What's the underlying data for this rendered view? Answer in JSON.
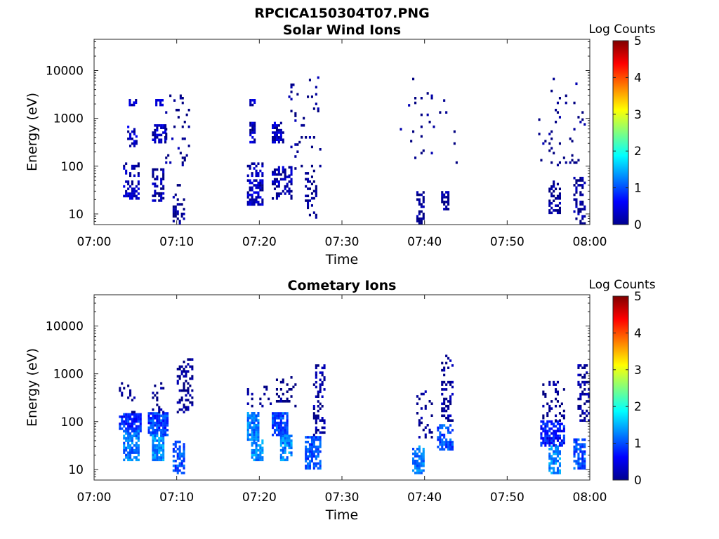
{
  "figure_title": "RPCICA150304T07.PNG",
  "colorbar_gradient": [
    "#00008f",
    "#0000ff",
    "#0080ff",
    "#00ffff",
    "#80ff80",
    "#ffff00",
    "#ff8000",
    "#ff0000",
    "#800000"
  ],
  "chart_data": [
    {
      "type": "heatmap",
      "title": "Solar Wind Ions",
      "xlabel": "Time",
      "ylabel": "Energy (eV)",
      "x_tick_labels": [
        "07:00",
        "07:10",
        "07:20",
        "07:30",
        "07:40",
        "07:50",
        "08:00"
      ],
      "x_range_minutes": [
        0,
        60
      ],
      "y_scale": "log",
      "y_range": [
        6,
        45000
      ],
      "y_tick_values": [
        10,
        100,
        1000,
        10000
      ],
      "y_tick_labels": [
        "10",
        "100",
        "1000",
        "10000"
      ],
      "colorbar": {
        "label": "Log Counts",
        "range": [
          0,
          5
        ],
        "tick_labels": [
          "0",
          "1",
          "2",
          "3",
          "4",
          "5"
        ]
      },
      "intensity_units": "log10 counts",
      "clusters": [
        {
          "t": [
            3.5,
            5.3
          ],
          "e": [
            20,
            45
          ],
          "level": 0.3,
          "density": 0.6
        },
        {
          "t": [
            3.5,
            5.5
          ],
          "e": [
            60,
            110
          ],
          "level": 0.2,
          "density": 0.35
        },
        {
          "t": [
            4.0,
            5.2
          ],
          "e": [
            250,
            700
          ],
          "level": 0.3,
          "density": 0.45
        },
        {
          "t": [
            4.2,
            5.2
          ],
          "e": [
            1800,
            2500
          ],
          "level": 0.3,
          "density": 0.7
        },
        {
          "t": [
            7.0,
            8.5
          ],
          "e": [
            18,
            90
          ],
          "level": 0.2,
          "density": 0.55
        },
        {
          "t": [
            7.0,
            8.6
          ],
          "e": [
            300,
            700
          ],
          "level": 0.3,
          "density": 0.5
        },
        {
          "t": [
            7.4,
            8.2
          ],
          "e": [
            1800,
            2500
          ],
          "level": 0.3,
          "density": 0.7
        },
        {
          "t": [
            8.6,
            11.5
          ],
          "e": [
            100,
            3000
          ],
          "level": 0.0,
          "density": 0.08
        },
        {
          "t": [
            9.5,
            11.0
          ],
          "e": [
            6,
            40
          ],
          "level": 0.0,
          "density": 0.35
        },
        {
          "t": [
            18.5,
            20.5
          ],
          "e": [
            15,
            50
          ],
          "level": 0.3,
          "density": 0.6
        },
        {
          "t": [
            18.5,
            20.5
          ],
          "e": [
            60,
            110
          ],
          "level": 0.2,
          "density": 0.35
        },
        {
          "t": [
            18.8,
            19.5
          ],
          "e": [
            300,
            800
          ],
          "level": 0.3,
          "density": 0.7
        },
        {
          "t": [
            18.8,
            19.5
          ],
          "e": [
            1800,
            2500
          ],
          "level": 0.3,
          "density": 0.7
        },
        {
          "t": [
            21.5,
            23.8
          ],
          "e": [
            20,
            90
          ],
          "level": 0.2,
          "density": 0.5
        },
        {
          "t": [
            21.5,
            23.0
          ],
          "e": [
            300,
            800
          ],
          "level": 0.3,
          "density": 0.55
        },
        {
          "t": [
            23.5,
            27.5
          ],
          "e": [
            60,
            7000
          ],
          "level": 0.0,
          "density": 0.06
        },
        {
          "t": [
            25.5,
            27.0
          ],
          "e": [
            8,
            60
          ],
          "level": 0.0,
          "density": 0.3
        },
        {
          "t": [
            37.0,
            44.0
          ],
          "e": [
            100,
            7000
          ],
          "level": 0.0,
          "density": 0.03
        },
        {
          "t": [
            39.0,
            40.0
          ],
          "e": [
            6,
            30
          ],
          "level": 0.0,
          "density": 0.5
        },
        {
          "t": [
            42.0,
            43.0
          ],
          "e": [
            12,
            30
          ],
          "level": 0.1,
          "density": 0.7
        },
        {
          "t": [
            53.5,
            59.5
          ],
          "e": [
            100,
            7000
          ],
          "level": 0.0,
          "density": 0.04
        },
        {
          "t": [
            55.0,
            56.5
          ],
          "e": [
            10,
            45
          ],
          "level": 0.1,
          "density": 0.45
        },
        {
          "t": [
            58.0,
            59.5
          ],
          "e": [
            6,
            60
          ],
          "level": 0.1,
          "density": 0.45
        }
      ]
    },
    {
      "type": "heatmap",
      "title": "Cometary Ions",
      "xlabel": "Time",
      "ylabel": "Energy (eV)",
      "x_tick_labels": [
        "07:00",
        "07:10",
        "07:20",
        "07:30",
        "07:40",
        "07:50",
        "08:00"
      ],
      "x_range_minutes": [
        0,
        60
      ],
      "y_scale": "log",
      "y_range": [
        6,
        45000
      ],
      "y_tick_values": [
        10,
        100,
        1000,
        10000
      ],
      "y_tick_labels": [
        "10",
        "100",
        "1000",
        "10000"
      ],
      "colorbar": {
        "label": "Log Counts",
        "range": [
          0,
          5
        ],
        "tick_labels": [
          "0",
          "1",
          "2",
          "3",
          "4",
          "5"
        ]
      },
      "intensity_units": "log10 counts",
      "clusters": [
        {
          "t": [
            3.0,
            5.7
          ],
          "e": [
            60,
            150
          ],
          "level": 0.8,
          "density": 0.8
        },
        {
          "t": [
            3.5,
            5.5
          ],
          "e": [
            15,
            60
          ],
          "level": 1.2,
          "density": 0.75
        },
        {
          "t": [
            3.0,
            5.0
          ],
          "e": [
            150,
            600
          ],
          "level": 0.0,
          "density": 0.15
        },
        {
          "t": [
            6.5,
            9.0
          ],
          "e": [
            50,
            150
          ],
          "level": 0.9,
          "density": 0.8
        },
        {
          "t": [
            7.0,
            8.5
          ],
          "e": [
            15,
            50
          ],
          "level": 1.3,
          "density": 0.8
        },
        {
          "t": [
            7.0,
            8.5
          ],
          "e": [
            150,
            600
          ],
          "level": 0.0,
          "density": 0.2
        },
        {
          "t": [
            9.5,
            11.0
          ],
          "e": [
            8,
            40
          ],
          "level": 1.0,
          "density": 0.75
        },
        {
          "t": [
            10.0,
            12.0
          ],
          "e": [
            150,
            2000
          ],
          "level": 0.0,
          "density": 0.25
        },
        {
          "t": [
            18.5,
            20.0
          ],
          "e": [
            40,
            150
          ],
          "level": 1.2,
          "density": 0.85
        },
        {
          "t": [
            19.0,
            20.5
          ],
          "e": [
            15,
            40
          ],
          "level": 1.3,
          "density": 0.7
        },
        {
          "t": [
            18.5,
            21.5
          ],
          "e": [
            200,
            600
          ],
          "level": 0.0,
          "density": 0.15
        },
        {
          "t": [
            21.5,
            23.5
          ],
          "e": [
            50,
            150
          ],
          "level": 1.0,
          "density": 0.8
        },
        {
          "t": [
            22.5,
            24.0
          ],
          "e": [
            15,
            50
          ],
          "level": 1.3,
          "density": 0.75
        },
        {
          "t": [
            22.0,
            24.5
          ],
          "e": [
            200,
            800
          ],
          "level": 0.0,
          "density": 0.2
        },
        {
          "t": [
            25.5,
            27.5
          ],
          "e": [
            10,
            50
          ],
          "level": 1.0,
          "density": 0.7
        },
        {
          "t": [
            26.5,
            28.0
          ],
          "e": [
            50,
            1500
          ],
          "level": 0.1,
          "density": 0.3
        },
        {
          "t": [
            38.5,
            40.0
          ],
          "e": [
            8,
            30
          ],
          "level": 1.2,
          "density": 0.7
        },
        {
          "t": [
            39.0,
            41.0
          ],
          "e": [
            40,
            400
          ],
          "level": 0.0,
          "density": 0.2
        },
        {
          "t": [
            41.5,
            43.5
          ],
          "e": [
            25,
            80
          ],
          "level": 1.0,
          "density": 0.65
        },
        {
          "t": [
            42.0,
            43.5
          ],
          "e": [
            100,
            2500
          ],
          "level": 0.1,
          "density": 0.3
        },
        {
          "t": [
            54.0,
            57.0
          ],
          "e": [
            30,
            100
          ],
          "level": 0.7,
          "density": 0.7
        },
        {
          "t": [
            55.0,
            56.5
          ],
          "e": [
            8,
            30
          ],
          "level": 1.3,
          "density": 0.7
        },
        {
          "t": [
            54.0,
            57.0
          ],
          "e": [
            100,
            700
          ],
          "level": 0.0,
          "density": 0.15
        },
        {
          "t": [
            58.0,
            59.5
          ],
          "e": [
            10,
            40
          ],
          "level": 1.0,
          "density": 0.7
        },
        {
          "t": [
            58.5,
            59.8
          ],
          "e": [
            100,
            1500
          ],
          "level": 0.1,
          "density": 0.35
        }
      ]
    }
  ]
}
